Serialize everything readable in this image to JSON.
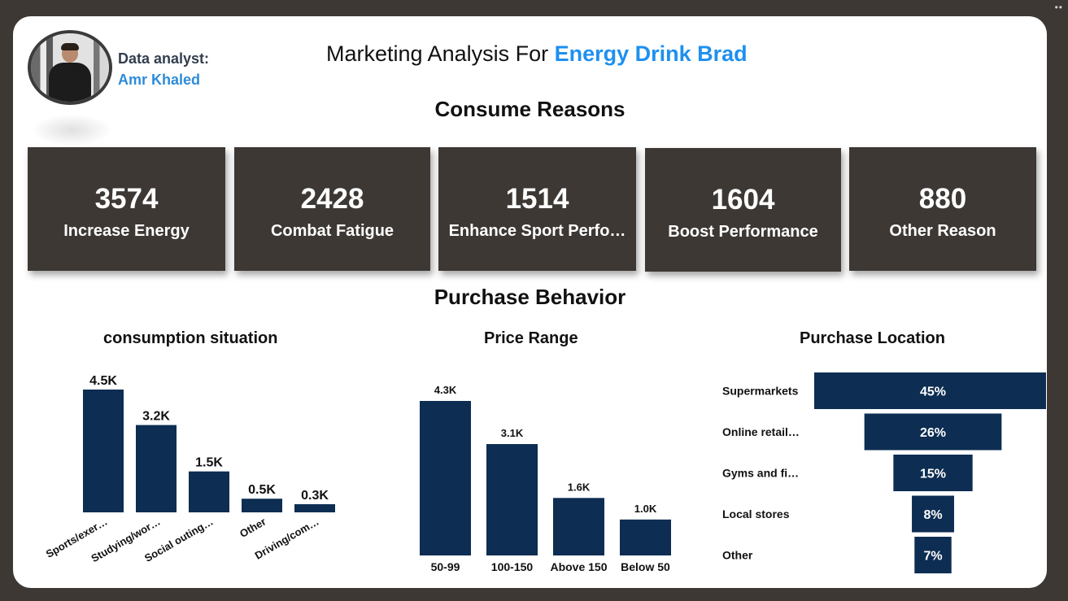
{
  "header": {
    "analyst_label": "Data analyst:",
    "analyst_name": "Amr Khaled",
    "title_prefix": "Marketing Analysis For ",
    "title_accent": "Energy Drink Brad"
  },
  "sections": {
    "consume_reasons": "Consume Reasons",
    "purchase_behavior": "Purchase Behavior"
  },
  "kpi_cards": [
    {
      "value": "3574",
      "label": "Increase Energy"
    },
    {
      "value": "2428",
      "label": "Combat Fatigue"
    },
    {
      "value": "1514",
      "label": "Enhance Sport Perfo…"
    },
    {
      "value": "1604",
      "label": "Boost Performance"
    },
    {
      "value": "880",
      "label": "Other Reason"
    }
  ],
  "colors": {
    "bar": "#0d2d52",
    "card": "#3d3834",
    "accent": "#1e90ef"
  },
  "chart_data": [
    {
      "type": "bar",
      "title": "consumption situation",
      "categories": [
        "Sports/exer…",
        "Studying/wor…",
        "Social outing…",
        "Other",
        "Driving/com…"
      ],
      "values": [
        4500,
        3200,
        1500,
        500,
        300
      ],
      "data_labels": [
        "4.5K",
        "3.2K",
        "1.5K",
        "0.5K",
        "0.3K"
      ],
      "ylim": [
        0,
        4500
      ],
      "grid": false
    },
    {
      "type": "bar",
      "title": "Price Range",
      "categories": [
        "50-99",
        "100-150",
        "Above 150",
        "Below 50"
      ],
      "values": [
        4300,
        3100,
        1600,
        1000
      ],
      "data_labels": [
        "4.3K",
        "3.1K",
        "1.6K",
        "1.0K"
      ],
      "ylim": [
        0,
        4300
      ],
      "grid": false
    },
    {
      "type": "bar",
      "orientation": "funnel",
      "title": "Purchase Location",
      "categories": [
        "Supermarkets",
        "Online retail…",
        "Gyms and fi…",
        "Local stores",
        "Other"
      ],
      "values": [
        45,
        26,
        15,
        8,
        7
      ],
      "data_labels": [
        "45%",
        "26%",
        "15%",
        "8%",
        "7%"
      ],
      "unit": "%"
    }
  ]
}
